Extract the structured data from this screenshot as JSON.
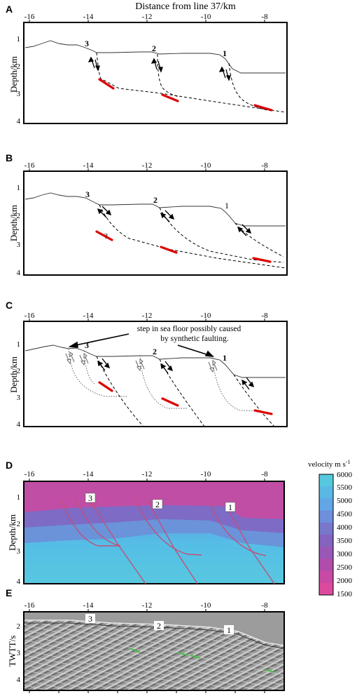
{
  "figure": {
    "top_xlabel": "Distance from line 37/km",
    "panels": [
      {
        "letter": "A",
        "ylabel": "Depth/km",
        "x_ticks": [
          "-16",
          "-14",
          "-12",
          "-10",
          "-8"
        ],
        "y_ticks": [
          "1",
          "2",
          "3",
          "4"
        ],
        "fault_numbers": [
          "3",
          "2",
          "1"
        ]
      },
      {
        "letter": "B",
        "ylabel": "Depth/km",
        "x_ticks": [
          "-16",
          "-14",
          "-12",
          "-10",
          "-8"
        ],
        "y_ticks": [
          "1",
          "2",
          "3",
          "4"
        ],
        "fault_numbers": [
          "3",
          "2",
          "1"
        ]
      },
      {
        "letter": "C",
        "ylabel": "Depth/km",
        "x_ticks": [
          "-16",
          "-14",
          "-12",
          "-10",
          "-8"
        ],
        "y_ticks": [
          "1",
          "2",
          "3",
          "4"
        ],
        "fault_numbers": [
          "3",
          "2",
          "1"
        ],
        "annotation": "step in sea floor possibly caused",
        "annotation2": "by synthetic faulting."
      },
      {
        "letter": "D",
        "ylabel": "Depth/km",
        "x_ticks": [
          "-16",
          "-14",
          "-12",
          "-10",
          "-8"
        ],
        "y_ticks": [
          "1",
          "2",
          "3",
          "4"
        ],
        "fault_numbers": [
          "3",
          "2",
          "1"
        ]
      },
      {
        "letter": "E",
        "ylabel": "TWTT/s",
        "x_ticks": [
          "-16",
          "-14",
          "-12",
          "-10",
          "-8"
        ],
        "y_ticks": [
          "2",
          "3",
          "4"
        ],
        "fault_numbers": [
          "3",
          "2",
          "1"
        ]
      }
    ],
    "colorbar": {
      "title": "velocity m s",
      "title_sup": "-1",
      "ticks": [
        "6000",
        "5500",
        "5000",
        "4500",
        "4000",
        "3500",
        "3000",
        "2500",
        "2000",
        "1500"
      ],
      "colors": [
        "#56c8dd",
        "#5bb8e4",
        "#63a6e6",
        "#6d8fdc",
        "#7877cc",
        "#8464bf",
        "#9a57b6",
        "#b14cab",
        "#c74aa4",
        "#dd4a9d"
      ]
    }
  }
}
